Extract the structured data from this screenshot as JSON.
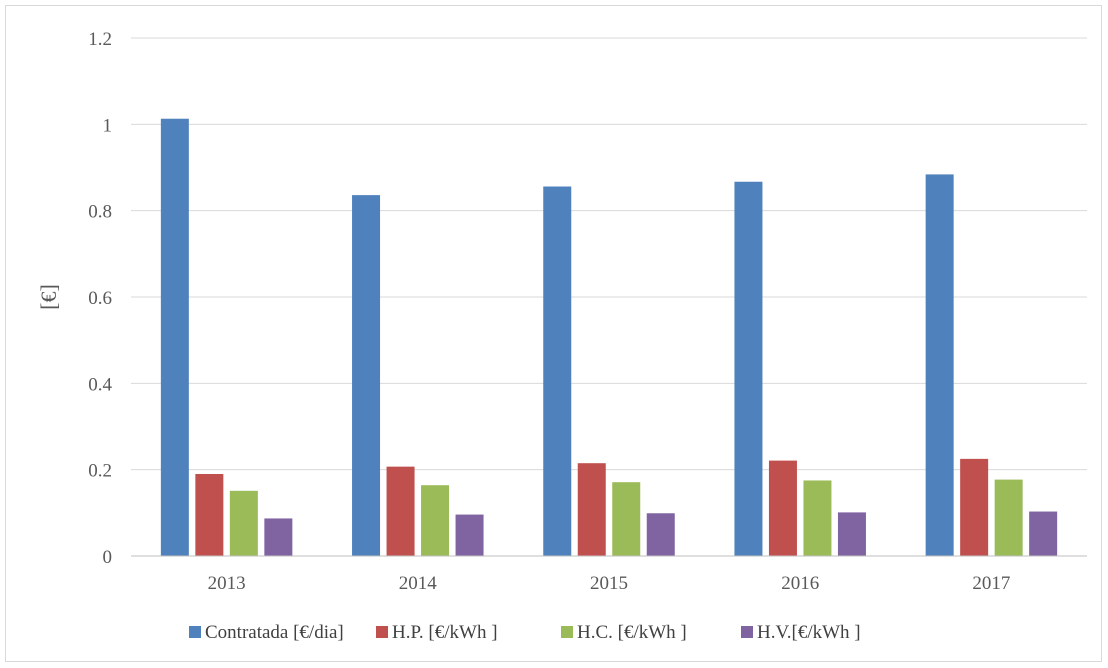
{
  "chart_data": {
    "type": "bar",
    "title": "",
    "xlabel": "",
    "ylabel": "[€]",
    "ylim": [
      0,
      1.2
    ],
    "yticks": [
      "0",
      "0.2",
      "0.4",
      "0.6",
      "0.8",
      "1",
      "1.2"
    ],
    "categories": [
      "2013",
      "2014",
      "2015",
      "2016",
      "2017"
    ],
    "grid": true,
    "legend_position": "bottom",
    "series": [
      {
        "name": "Contratada [€/dia]",
        "color": "#4F81BD",
        "values": [
          1.013,
          0.836,
          0.856,
          0.867,
          0.884
        ]
      },
      {
        "name": "H.P. [€/kWh ]",
        "color": "#C0504D",
        "values": [
          0.19,
          0.207,
          0.215,
          0.221,
          0.225
        ]
      },
      {
        "name": "H.C. [€/kWh ]",
        "color": "#9BBB59",
        "values": [
          0.151,
          0.164,
          0.171,
          0.175,
          0.177
        ]
      },
      {
        "name": "H.V.[€/kWh ]",
        "color": "#8064A2",
        "values": [
          0.087,
          0.096,
          0.099,
          0.101,
          0.103
        ]
      }
    ]
  }
}
